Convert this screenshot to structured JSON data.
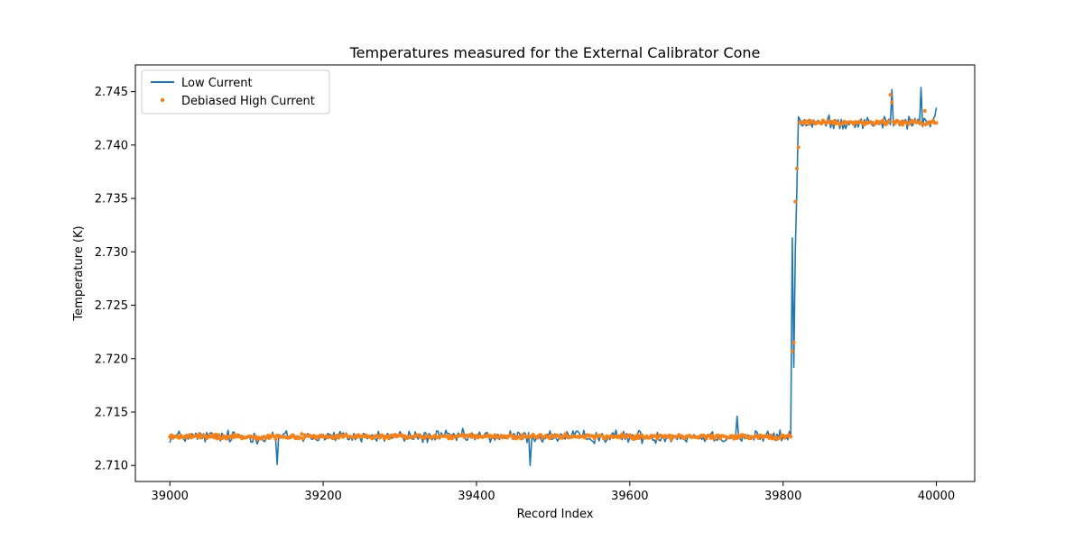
{
  "chart_data": {
    "type": "line",
    "title": "Temperatures measured for the External Calibrator Cone",
    "xlabel": "Record Index",
    "ylabel": "Temperature (K)",
    "xlim": [
      38955,
      40050
    ],
    "ylim": [
      2.7085,
      2.7475
    ],
    "xticks": [
      39000,
      39200,
      39400,
      39600,
      39800,
      40000
    ],
    "yticks": [
      2.71,
      2.715,
      2.72,
      2.725,
      2.73,
      2.735,
      2.74,
      2.745
    ],
    "xtick_labels": [
      "39000",
      "39200",
      "39400",
      "39600",
      "39800",
      "40000"
    ],
    "ytick_labels": [
      "2.710",
      "2.715",
      "2.720",
      "2.725",
      "2.730",
      "2.735",
      "2.740",
      "2.745"
    ],
    "legend_position": "top-left",
    "series": [
      {
        "name": "Low Current",
        "style": "line",
        "color": "#1f77b4",
        "profile": {
          "x_start": 39000,
          "x_end": 40000,
          "step_start": 39810,
          "step_end": 39820,
          "low_level": 2.7127,
          "high_level": 2.7421,
          "noise_amplitude": 0.0009
        },
        "highlights": [
          {
            "x": 39140,
            "y": 2.7101
          },
          {
            "x": 39470,
            "y": 2.71
          },
          {
            "x": 39740,
            "y": 2.7146
          },
          {
            "x": 39812,
            "y": 2.7313
          },
          {
            "x": 39814,
            "y": 2.7192
          },
          {
            "x": 39980,
            "y": 2.7454
          },
          {
            "x": 39942,
            "y": 2.7452
          },
          {
            "x": 40000,
            "y": 2.7435
          }
        ]
      },
      {
        "name": "Debiased High Current",
        "style": "scatter",
        "color": "#ff7f0e",
        "profile": {
          "x_start": 39000,
          "x_end": 40000,
          "step_start": 39810,
          "step_end": 39822,
          "low_level": 2.7127,
          "high_level": 2.7421,
          "noise_amplitude": 0.0003
        },
        "highlights": [
          {
            "x": 39812,
            "y": 2.7207
          },
          {
            "x": 39814,
            "y": 2.7215
          },
          {
            "x": 39816,
            "y": 2.7347
          },
          {
            "x": 39818,
            "y": 2.7378
          },
          {
            "x": 39820,
            "y": 2.7398
          },
          {
            "x": 39940,
            "y": 2.7447
          },
          {
            "x": 39942,
            "y": 2.744
          },
          {
            "x": 39985,
            "y": 2.7432
          }
        ]
      }
    ]
  }
}
